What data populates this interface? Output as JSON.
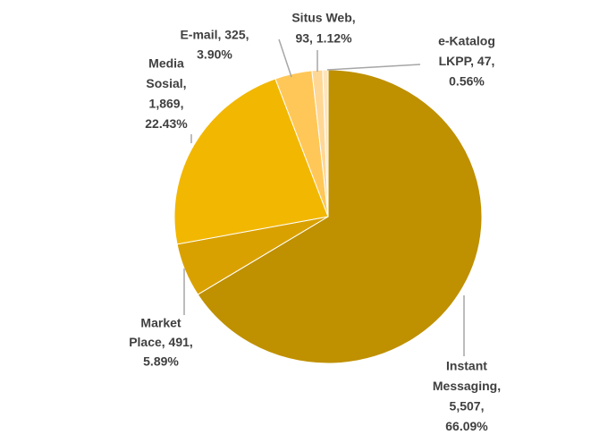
{
  "chart_data": {
    "type": "pie",
    "categories": [
      "Instant Messaging",
      "Market Place",
      "Media Sosial",
      "E-mail",
      "Situs Web",
      "e-Katalog LKPP"
    ],
    "values": [
      5507,
      491,
      1869,
      325,
      93,
      47
    ],
    "colors": [
      "#bf9000",
      "#d9a100",
      "#f2b700",
      "#ffc758",
      "#ffd795",
      "#ffe5bd"
    ],
    "label_lines": [
      [
        "Instant",
        "Messaging,",
        "5,507,",
        "66.09%"
      ],
      [
        "Market",
        "Place, 491,",
        "5.89%"
      ],
      [
        "Media",
        "Sosial,",
        "1,869,",
        "22.43%"
      ],
      [
        "E-mail, 325,",
        "3.90%"
      ],
      [
        "Situs Web,",
        "93, 1.12%"
      ],
      [
        "e-Katalog",
        "LKPP, 47,",
        "0.56%"
      ]
    ]
  }
}
